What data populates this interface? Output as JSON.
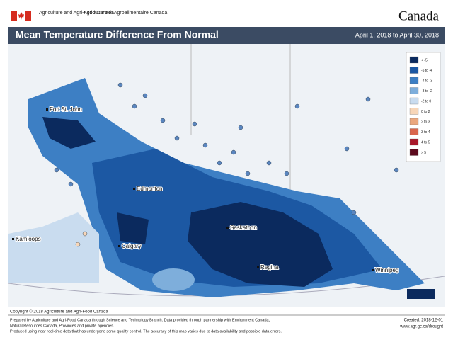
{
  "header": {
    "org_en": "Agriculture and Agri-Food Canada",
    "org_fr": "Agriculture et Agroalimentaire Canada",
    "wordmark": "Canada"
  },
  "title": "Mean Temperature Difference From Normal",
  "period": "April 1, 2018 to April 30, 2018",
  "legend": [
    {
      "label": "< -5",
      "color": "#0b2a5e"
    },
    {
      "label": "-5 to -4",
      "color": "#1c58a3"
    },
    {
      "label": "-4 to -3",
      "color": "#3d7fc4"
    },
    {
      "label": "-3 to -2",
      "color": "#7eaedb"
    },
    {
      "label": "-2 to 0",
      "color": "#c9dcef"
    },
    {
      "label": "0 to 2",
      "color": "#f7d6b8"
    },
    {
      "label": "2 to 3",
      "color": "#eaa77e"
    },
    {
      "label": "3 to 4",
      "color": "#d9664d"
    },
    {
      "label": "4 to 5",
      "color": "#a8182a"
    },
    {
      "label": "> 5",
      "color": "#5c0a1d"
    }
  ],
  "cities": [
    {
      "name": "Fort St. John"
    },
    {
      "name": "Edmonton"
    },
    {
      "name": "Kamloops"
    },
    {
      "name": "Calgary"
    },
    {
      "name": "Saskatoon"
    },
    {
      "name": "Regina"
    },
    {
      "name": "Winnipeg"
    }
  ],
  "copyright": "Copyright © 2018 Agriculture and Agri-Food Canada",
  "footer": {
    "lines": [
      "Prepared by Agriculture and Agri-Food Canada through Science and Technology Branch. Data provided through partnership with Environment Canada,",
      "Natural Resources Canada, Provinces and private agencies.",
      "Produced using near real-time data that has undergone some quality control. The accuracy of this map varies due to data availability and possible data errors."
    ],
    "created": "Created: 2018-12-01",
    "url": "www.agr.gc.ca/drought"
  }
}
